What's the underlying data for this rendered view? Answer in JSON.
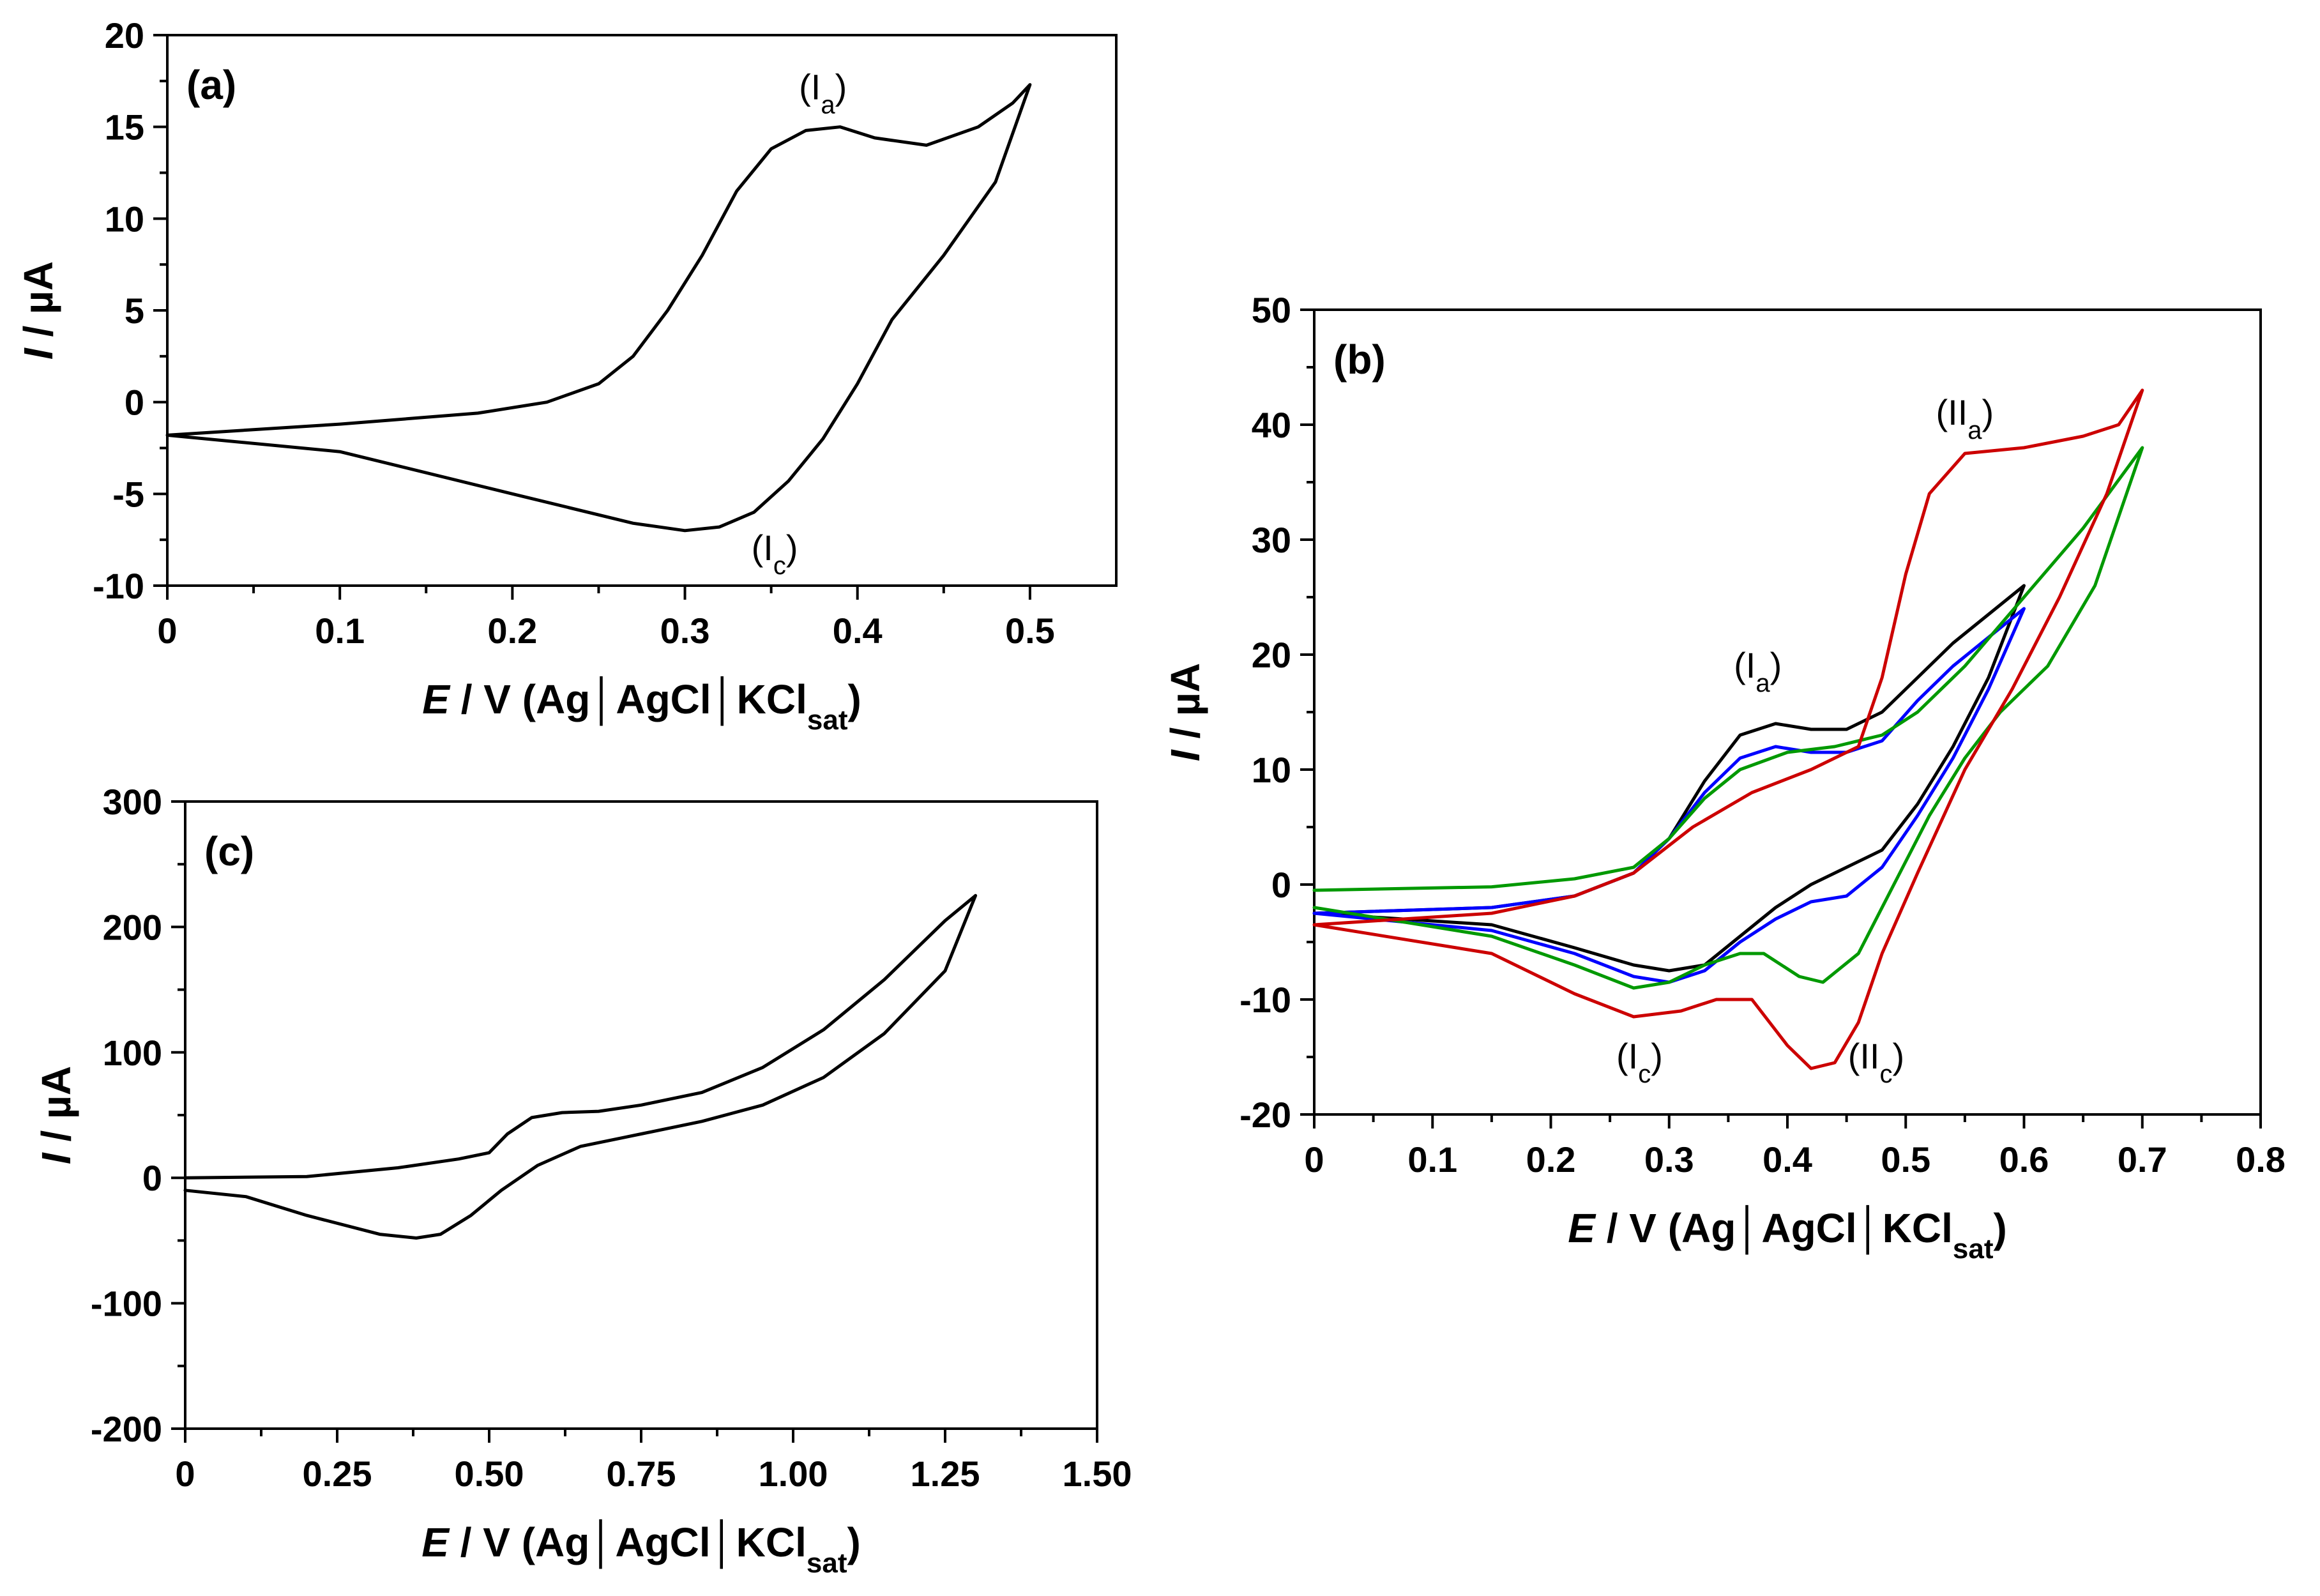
{
  "chart_data": [
    {
      "type": "line",
      "panel_label": "(a)",
      "xlabel": {
        "var": "E",
        "rest": " / V (Ag│AgCl│KCl",
        "sub": "sat",
        "end": ")"
      },
      "ylabel": {
        "var": "I",
        "rest": " / µA"
      },
      "xlim": [
        0,
        0.55
      ],
      "ylim": [
        -10,
        20
      ],
      "x_ticks": [
        0,
        0.1,
        0.2,
        0.3,
        0.4,
        0.5
      ],
      "x_tick_labels": [
        "0",
        "0.1",
        "0.2",
        "0.3",
        "0.4",
        "0.5"
      ],
      "y_ticks": [
        -10,
        -5,
        0,
        5,
        10,
        15,
        20
      ],
      "y_tick_labels": [
        "-10",
        "-5",
        "0",
        "5",
        "10",
        "15",
        "20"
      ],
      "grid": false,
      "annotations": [
        {
          "main": "(I",
          "sub": "a",
          "end": ")",
          "x": 0.38,
          "y": 16.5
        },
        {
          "main": "(I",
          "sub": "c",
          "end": ")",
          "x": 0.352,
          "y": -8.6
        }
      ],
      "series": [
        {
          "color": "#000000",
          "x": [
            0,
            0.1,
            0.18,
            0.22,
            0.25,
            0.27,
            0.29,
            0.31,
            0.33,
            0.35,
            0.37,
            0.39,
            0.41,
            0.44,
            0.47,
            0.49,
            0.5,
            0.48,
            0.45,
            0.42,
            0.4,
            0.38,
            0.36,
            0.34,
            0.32,
            0.3,
            0.27,
            0.2,
            0.1,
            0
          ],
          "y": [
            -1.8,
            -1.2,
            -0.6,
            0,
            1,
            2.5,
            5,
            8,
            11.5,
            13.8,
            14.8,
            15,
            14.4,
            14,
            15,
            16.3,
            17.3,
            12,
            8,
            4.5,
            1,
            -2,
            -4.3,
            -6,
            -6.8,
            -7,
            -6.6,
            -5,
            -2.7,
            -1.8
          ]
        }
      ]
    },
    {
      "type": "line",
      "panel_label": "(b)",
      "xlabel": {
        "var": "E",
        "rest": " / V (Ag│AgCl│KCl",
        "sub": "sat",
        "end": ")"
      },
      "ylabel": {
        "var": "I",
        "rest": " / µA"
      },
      "xlim": [
        0,
        0.8
      ],
      "ylim": [
        -20,
        50
      ],
      "x_ticks": [
        0,
        0.1,
        0.2,
        0.3,
        0.4,
        0.5,
        0.6,
        0.7,
        0.8
      ],
      "x_tick_labels": [
        "0",
        "0.1",
        "0.2",
        "0.3",
        "0.4",
        "0.5",
        "0.6",
        "0.7",
        "0.8"
      ],
      "y_ticks": [
        -20,
        -10,
        0,
        10,
        20,
        30,
        40,
        50
      ],
      "y_tick_labels": [
        "-20",
        "-10",
        "0",
        "10",
        "20",
        "30",
        "40",
        "50"
      ],
      "grid": false,
      "annotations": [
        {
          "main": "(I",
          "sub": "a",
          "end": ")",
          "x": 0.375,
          "y": 18
        },
        {
          "main": "(II",
          "sub": "a",
          "end": ")",
          "x": 0.55,
          "y": 40
        },
        {
          "main": "(I",
          "sub": "c",
          "end": ")",
          "x": 0.275,
          "y": -16
        },
        {
          "main": "(II",
          "sub": "c",
          "end": ")",
          "x": 0.475,
          "y": -16
        }
      ],
      "series": [
        {
          "color": "#000000",
          "x": [
            0,
            0.15,
            0.22,
            0.27,
            0.3,
            0.33,
            0.36,
            0.39,
            0.42,
            0.45,
            0.48,
            0.51,
            0.54,
            0.57,
            0.6,
            0.57,
            0.54,
            0.51,
            0.48,
            0.45,
            0.42,
            0.39,
            0.36,
            0.33,
            0.3,
            0.27,
            0.22,
            0.15,
            0
          ],
          "y": [
            -2.5,
            -2,
            -1,
            1,
            4,
            9,
            13,
            14,
            13.5,
            13.5,
            15,
            18,
            21,
            23.5,
            26,
            18,
            12,
            7,
            3,
            1.5,
            0,
            -2,
            -4.5,
            -7,
            -7.5,
            -7,
            -5.5,
            -3.5,
            -2.5
          ]
        },
        {
          "color": "#0000ff",
          "x": [
            0,
            0.15,
            0.22,
            0.27,
            0.3,
            0.33,
            0.36,
            0.39,
            0.42,
            0.45,
            0.48,
            0.51,
            0.54,
            0.57,
            0.6,
            0.57,
            0.54,
            0.51,
            0.48,
            0.45,
            0.42,
            0.39,
            0.36,
            0.33,
            0.3,
            0.27,
            0.22,
            0.15,
            0
          ],
          "y": [
            -2.5,
            -2,
            -1,
            1,
            4,
            8,
            11,
            12,
            11.5,
            11.5,
            12.5,
            16,
            19,
            21.5,
            24,
            17,
            11,
            6,
            1.5,
            -1,
            -1.5,
            -3,
            -5,
            -7.5,
            -8.5,
            -8,
            -6,
            -4,
            -2.5
          ]
        },
        {
          "color": "#009900",
          "x": [
            0,
            0.15,
            0.22,
            0.27,
            0.3,
            0.33,
            0.36,
            0.4,
            0.44,
            0.48,
            0.51,
            0.55,
            0.6,
            0.65,
            0.7,
            0.66,
            0.62,
            0.58,
            0.55,
            0.52,
            0.49,
            0.46,
            0.43,
            0.41,
            0.38,
            0.36,
            0.33,
            0.3,
            0.27,
            0.22,
            0.15,
            0
          ],
          "y": [
            -0.5,
            -0.2,
            0.5,
            1.5,
            4,
            7.5,
            10,
            11.5,
            12,
            13,
            15,
            19,
            25,
            31,
            38,
            26,
            19,
            15,
            11,
            6,
            0,
            -6,
            -8.5,
            -8,
            -6,
            -6,
            -7,
            -8.5,
            -9,
            -7,
            -4.5,
            -2
          ]
        },
        {
          "color": "#cc0000",
          "x": [
            0,
            0.15,
            0.22,
            0.27,
            0.32,
            0.37,
            0.42,
            0.46,
            0.48,
            0.5,
            0.52,
            0.55,
            0.6,
            0.65,
            0.68,
            0.7,
            0.67,
            0.63,
            0.59,
            0.55,
            0.51,
            0.48,
            0.46,
            0.44,
            0.42,
            0.4,
            0.37,
            0.34,
            0.31,
            0.27,
            0.22,
            0.15,
            0
          ],
          "y": [
            -3.5,
            -2.5,
            -1,
            1,
            5,
            8,
            10,
            12,
            18,
            27,
            34,
            37.5,
            38,
            39,
            40,
            43,
            34,
            25,
            17,
            10,
            1,
            -6,
            -12,
            -15.5,
            -16,
            -14,
            -10,
            -10,
            -11,
            -11.5,
            -9.5,
            -6,
            -3.5
          ]
        }
      ]
    },
    {
      "type": "line",
      "panel_label": "(c)",
      "xlabel": {
        "var": "E",
        "rest": " / V (Ag│AgCl│KCl",
        "sub": "sat",
        "end": ")"
      },
      "ylabel": {
        "var": "I",
        "rest": " / µA"
      },
      "xlim": [
        0,
        1.5
      ],
      "ylim": [
        -200,
        300
      ],
      "x_ticks": [
        0,
        0.25,
        0.5,
        0.75,
        1.0,
        1.25,
        1.5
      ],
      "x_tick_labels": [
        "0",
        "0.25",
        "0.50",
        "0.75",
        "1.00",
        "1.25",
        "1.50"
      ],
      "y_ticks": [
        -200,
        -100,
        0,
        100,
        200,
        300
      ],
      "y_tick_labels": [
        "-200",
        "-100",
        "0",
        "100",
        "200",
        "300"
      ],
      "grid": false,
      "annotations": [],
      "series": [
        {
          "color": "#000000",
          "x": [
            0,
            0.2,
            0.35,
            0.45,
            0.5,
            0.53,
            0.57,
            0.62,
            0.68,
            0.75,
            0.85,
            0.95,
            1.05,
            1.15,
            1.25,
            1.3,
            1.25,
            1.15,
            1.05,
            0.95,
            0.85,
            0.75,
            0.65,
            0.58,
            0.52,
            0.47,
            0.42,
            0.38,
            0.32,
            0.2,
            0.1,
            0
          ],
          "y": [
            0,
            1,
            8,
            15,
            20,
            35,
            48,
            52,
            53,
            58,
            68,
            88,
            118,
            158,
            205,
            225,
            165,
            115,
            80,
            58,
            45,
            35,
            25,
            10,
            -10,
            -30,
            -45,
            -48,
            -45,
            -30,
            -15,
            -10
          ]
        }
      ]
    }
  ]
}
